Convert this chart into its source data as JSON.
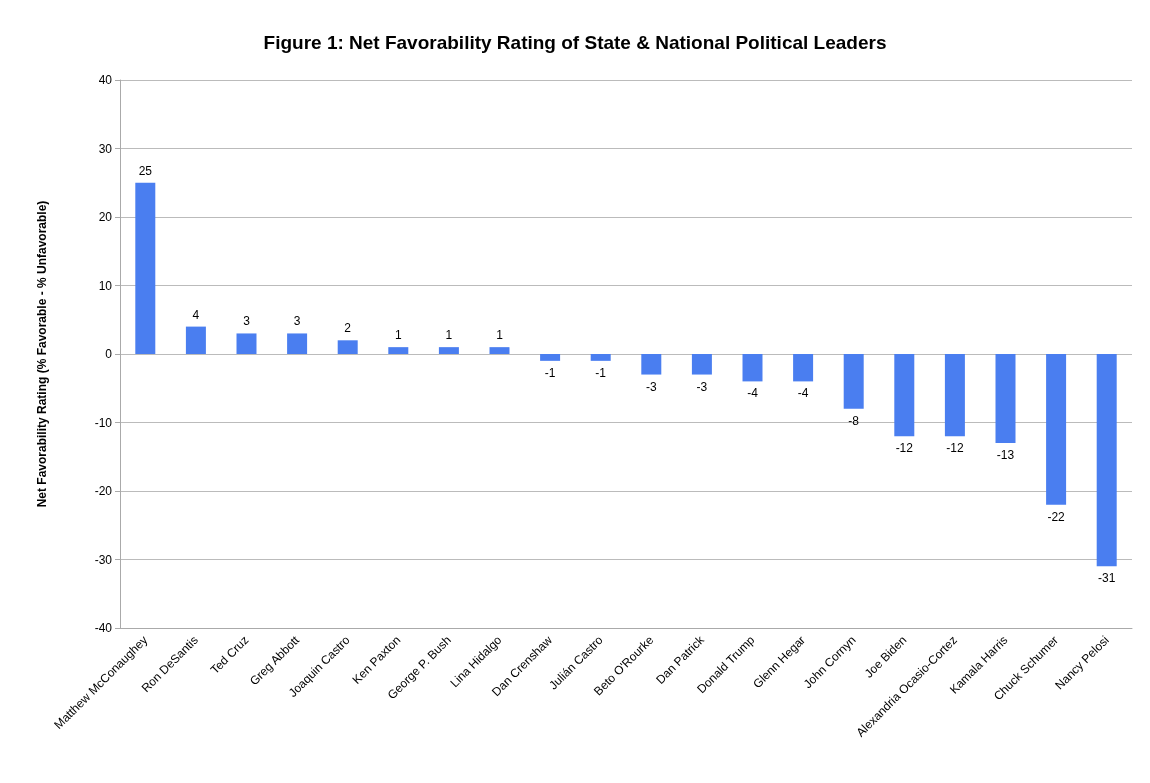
{
  "chart_data": {
    "type": "bar",
    "title": "Figure 1: Net Favorability Rating of State & National Political Leaders",
    "ylabel": "Net Favorability Rating (% Favorable - % Unfavorable)",
    "categories": [
      "Matthew McConaughey",
      "Ron DeSantis",
      "Ted Cruz",
      "Greg Abbott",
      "Joaquin Castro",
      "Ken Paxton",
      "George P. Bush",
      "Lina Hidalgo",
      "Dan Crenshaw",
      "Julián Castro",
      "Beto O'Rourke",
      "Dan Patrick",
      "Donald Trump",
      "Glenn Hegar",
      "John Cornyn",
      "Joe Biden",
      "Alexandria Ocasio-Cortez",
      "Kamala Harris",
      "Chuck Schumer",
      "Nancy Pelosi"
    ],
    "values": [
      25,
      4,
      3,
      3,
      2,
      1,
      1,
      1,
      -1,
      -1,
      -3,
      -3,
      -4,
      -4,
      -8,
      -12,
      -12,
      -13,
      -22,
      -31
    ],
    "color": "#4a7ef0",
    "ylim": [
      -40,
      40
    ],
    "yticks": [
      -40,
      -30,
      -20,
      -10,
      0,
      10,
      20,
      30,
      40
    ],
    "grid": "y",
    "data_labels": true
  }
}
